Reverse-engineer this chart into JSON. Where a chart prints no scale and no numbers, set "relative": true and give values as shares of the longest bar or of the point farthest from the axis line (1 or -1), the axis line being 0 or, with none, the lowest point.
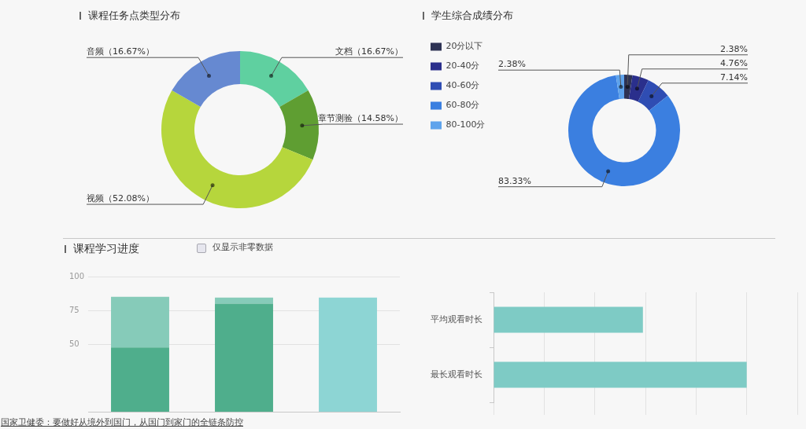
{
  "chart_data": [
    {
      "type": "donut",
      "title": "课程任务点类型分布",
      "categories": [
        "文档",
        "章节测验",
        "视频",
        "音频"
      ],
      "values": [
        16.67,
        14.58,
        52.08,
        16.67
      ],
      "colors": [
        "#5fd0a0",
        "#5f9e32",
        "#b6d63c",
        "#6689d1"
      ],
      "value_labels": [
        "（16.67%）",
        "（14.58%）",
        "（52.08%）",
        "（16.67%）"
      ]
    },
    {
      "type": "donut",
      "title": "学生综合成绩分布",
      "categories": [
        "20分以下",
        "20-40分",
        "40-60分",
        "60-80分",
        "80-100分"
      ],
      "values": [
        2.38,
        4.76,
        7.14,
        83.33,
        2.38
      ],
      "colors": [
        "#2e3354",
        "#2a2f8c",
        "#2f4db3",
        "#3b7fe0",
        "#5ea3ec"
      ],
      "value_labels": [
        "2.38%",
        "4.76%",
        "7.14%",
        "83.33%",
        "2.38%"
      ],
      "legend": "left"
    },
    {
      "type": "bar",
      "title": "课程学习进度",
      "categories": [
        null,
        null,
        null
      ],
      "stacked": true,
      "series": [
        {
          "color": "#4fae8c",
          "values": [
            47.5,
            80,
            null
          ]
        },
        {
          "color": "#86cbb9",
          "values": [
            37.5,
            4.5,
            null
          ]
        },
        {
          "color": "#8dd5d4",
          "values": [
            null,
            null,
            84.5
          ]
        }
      ],
      "ylim": [
        0,
        100
      ],
      "yticks": [
        50,
        75,
        100
      ],
      "grid": "y",
      "tick_labels": "y",
      "annotations": [
        "仅显示非零数据",
        "国家卫健委：要做好从境外到国门，从国门到家门的全链条防控"
      ]
    },
    {
      "type": "bar",
      "orientation": "horizontal",
      "categories": [
        "平均观看时长",
        "最长观看时长"
      ],
      "values": [
        0.59,
        1
      ],
      "color": "#7ecbc5",
      "relative": true,
      "grid": "x",
      "tick_labels": "y"
    }
  ]
}
